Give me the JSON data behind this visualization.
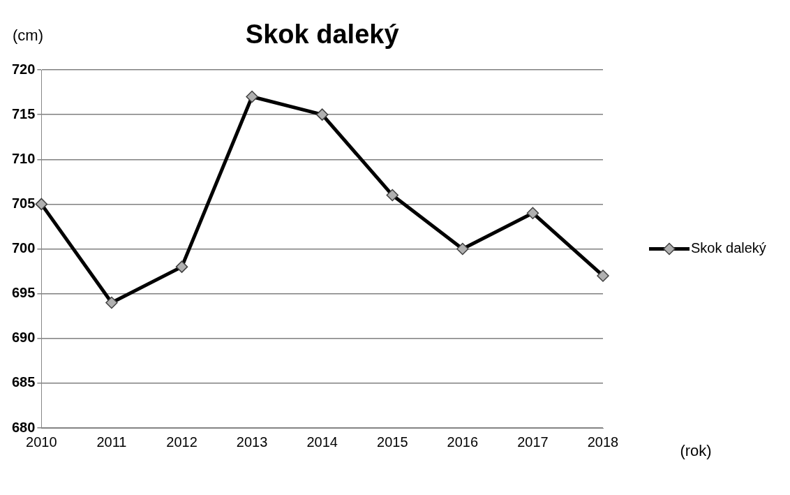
{
  "chart_data": {
    "type": "line",
    "title": "Skok daleký",
    "ylabel": "(cm)",
    "xlabel": "(rok)",
    "categories": [
      "2010",
      "2011",
      "2012",
      "2013",
      "2014",
      "2015",
      "2016",
      "2017",
      "2018"
    ],
    "series": [
      {
        "name": "Skok daleký",
        "color": "#000000",
        "values": [
          705,
          694,
          698,
          717,
          715,
          706,
          700,
          704,
          697
        ]
      }
    ],
    "ylim": [
      680,
      720
    ],
    "yticks": [
      680,
      685,
      690,
      695,
      700,
      705,
      710,
      715,
      720
    ],
    "grid": "y",
    "legend": "right",
    "marker": "diamond",
    "line_style": "solid"
  }
}
